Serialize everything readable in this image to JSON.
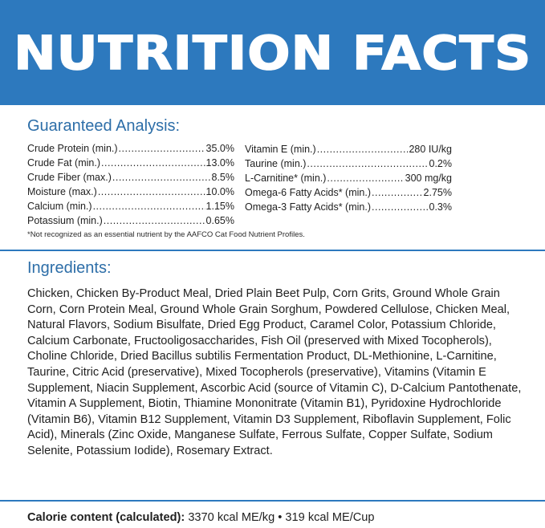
{
  "banner": {
    "title": "NUTRITION FACTS",
    "bg_color": "#2d79be",
    "text_color": "#ffffff"
  },
  "analysis": {
    "title": "Guaranteed Analysis:",
    "left": [
      {
        "label": "Crude Protein (min.)",
        "value": "35.0%"
      },
      {
        "label": "Crude Fat (min.)",
        "value": "13.0%"
      },
      {
        "label": "Crude Fiber (max.)",
        "value": "8.5%"
      },
      {
        "label": "Moisture (max.)",
        "value": "10.0%"
      },
      {
        "label": "Calcium (min.)",
        "value": "1.15%"
      },
      {
        "label": "Potassium (min.)",
        "value": "0.65%"
      }
    ],
    "right": [
      {
        "label": "Vitamin E (min.)",
        "value": "280 IU/kg"
      },
      {
        "label": "Taurine (min.)",
        "value": "0.2%"
      },
      {
        "label": "L-Carnitine* (min.)",
        "value": "300 mg/kg"
      },
      {
        "label": "Omega-6 Fatty Acids* (min.)",
        "value": "2.75%"
      },
      {
        "label": "Omega-3 Fatty Acids* (min.)",
        "value": "0.3%"
      }
    ],
    "footnote": "*Not recognized as an essential nutrient by the AAFCO Cat Food Nutrient Profiles."
  },
  "ingredients": {
    "title": "Ingredients:",
    "text": "Chicken, Chicken By-Product Meal, Dried Plain Beet Pulp, Corn Grits, Ground Whole Grain Corn, Corn Protein Meal, Ground Whole Grain Sorghum, Powdered Cellulose, Chicken Meal, Natural Flavors, Sodium Bisulfate, Dried Egg Product, Caramel Color, Potassium Chloride, Calcium Carbonate, Fructooligosaccharides, Fish Oil (preserved with Mixed Tocopherols), Choline Chloride, Dried Bacillus subtilis Fermentation Product, DL-Methionine, L-Carnitine, Taurine, Citric Acid (preservative), Mixed Tocopherols (preservative), Vitamins (Vitamin E Supplement, Niacin Supplement, Ascorbic Acid (source of Vitamin C), D-Calcium Pantothenate, Vitamin A Supplement, Biotin, Thiamine Mononitrate (Vitamin B1), Pyridoxine Hydrochloride (Vitamin B6), Vitamin B12 Supplement, Vitamin D3 Supplement, Riboflavin Supplement, Folic Acid), Minerals (Zinc Oxide, Manganese Sulfate, Ferrous Sulfate, Copper Sulfate, Sodium Selenite, Potassium Iodide), Rosemary Extract."
  },
  "calorie": {
    "label": "Calorie content (calculated):",
    "value": "3370 kcal ME/kg • 319 kcal ME/Cup"
  },
  "accent_color": "#2d6ea8"
}
